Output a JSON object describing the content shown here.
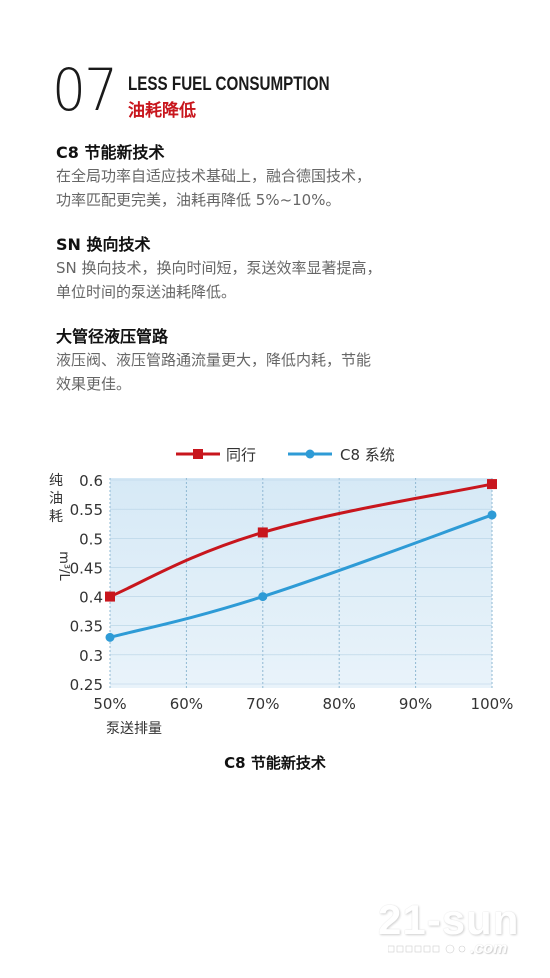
{
  "header": {
    "number": "07",
    "title_en": "LESS FUEL CONSUMPTION",
    "title_cn": "油耗降低"
  },
  "sections": [
    {
      "title": "C8 节能新技术",
      "body_lines": [
        "在全局功率自适应技术基础上，融合德国技术，",
        "功率匹配更完美，油耗再降低 5%~10%。"
      ]
    },
    {
      "title": "SN 换向技术",
      "body_lines": [
        "SN 换向技术，换向时间短，泵送效率显著提高，",
        "单位时间的泵送油耗降低。"
      ]
    },
    {
      "title": "大管径液压管路",
      "body_lines": [
        "液压阀、液压管路通流量更大，降低内耗，节能",
        "效果更佳。"
      ]
    }
  ],
  "chart_data": {
    "type": "line",
    "title": "C8 节能新技术",
    "ylabel_chars": [
      "纯",
      "油",
      "耗"
    ],
    "yunit": "m³/L",
    "xlabel": "泵送排量",
    "x_tick_labels": [
      "50%",
      "60%",
      "70%",
      "80%",
      "90%",
      "100%"
    ],
    "x_ticks": [
      50,
      60,
      70,
      80,
      90,
      100
    ],
    "xlim": [
      50,
      100
    ],
    "y_tick_labels": [
      "0.6",
      "0.55",
      "0.5",
      "0.45",
      "0.4",
      "0.35",
      "0.3",
      "0.25"
    ],
    "y_ticks": [
      0.6,
      0.55,
      0.5,
      0.45,
      0.4,
      0.35,
      0.3,
      0.25
    ],
    "ylim": [
      0.25,
      0.6
    ],
    "legend_position": "top-center",
    "series": [
      {
        "name": "同行",
        "color": "#c8161d",
        "marker": "square",
        "x": [
          50,
          70,
          100
        ],
        "y": [
          0.4,
          0.51,
          0.593
        ]
      },
      {
        "name": "C8 系统",
        "color": "#2e9bd6",
        "marker": "circle",
        "x": [
          50,
          70,
          100
        ],
        "y": [
          0.33,
          0.4,
          0.54
        ]
      }
    ]
  },
  "watermark": {
    "main": "21-sun",
    "sub": ".com"
  }
}
